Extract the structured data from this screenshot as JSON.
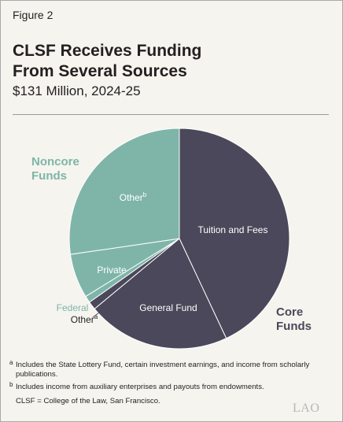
{
  "figure_label": "Figure 2",
  "title_line1": "CLSF Receives Funding",
  "title_line2": "From Several Sources",
  "subtitle": "$131 Million, 2024-25",
  "groups": {
    "noncore_line1": "Noncore",
    "noncore_line2": "Funds",
    "core_line1": "Core",
    "core_line2": "Funds"
  },
  "chart_data": {
    "type": "pie",
    "title": "CLSF Receives Funding From Several Sources",
    "subtitle": "$131 Million, 2024-25",
    "total": "$131 Million",
    "slices": [
      {
        "label": "Tuition and Fees",
        "value": 43,
        "group": "Core Funds",
        "color": "#4a485a"
      },
      {
        "label": "General Fund",
        "value": 21,
        "group": "Core Funds",
        "color": "#4a485a"
      },
      {
        "label": "Other",
        "footnote": "a",
        "value": 1.2,
        "group": "Core Funds",
        "color": "#4a485a"
      },
      {
        "label": "Federal",
        "value": 1.0,
        "group": "Noncore Funds",
        "color": "#7fb5a9"
      },
      {
        "label": "Private",
        "value": 6.5,
        "group": "Noncore Funds",
        "color": "#7fb5a9"
      },
      {
        "label": "Other",
        "footnote": "b",
        "value": 27.3,
        "group": "Noncore Funds",
        "color": "#7fb5a9"
      }
    ]
  },
  "footnotes": {
    "a_marker": "a",
    "a_text": "Includes the State Lottery Fund, certain investment earnings, and income from scholarly publications.",
    "b_marker": "b",
    "b_text": "Includes income from auxiliary enterprises and payouts from endowments.",
    "abbrev": "CLSF = College of the Law, San Francisco."
  },
  "logo": "LAO"
}
